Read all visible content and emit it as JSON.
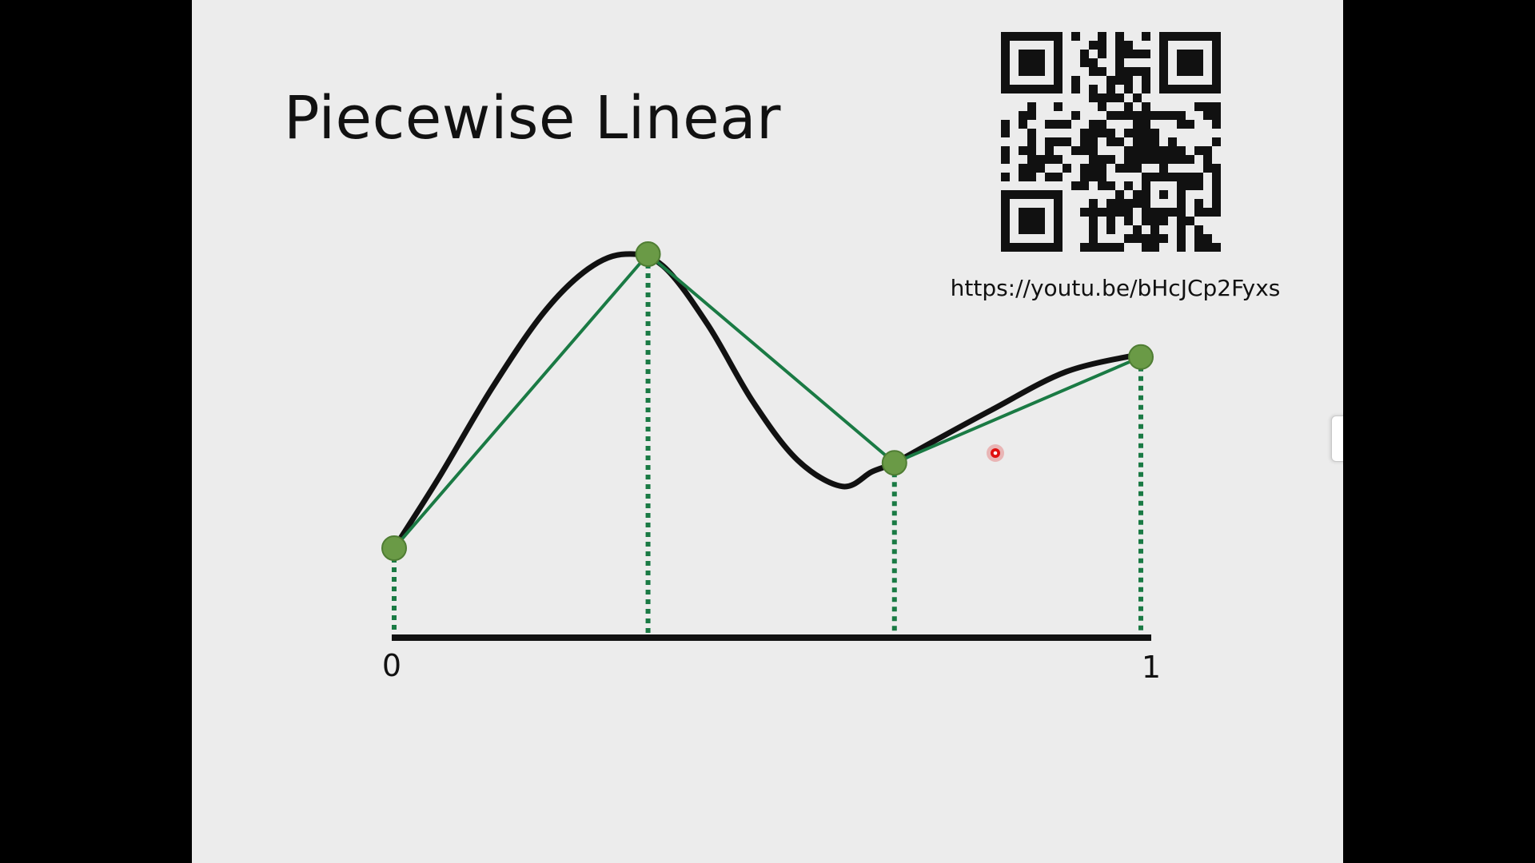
{
  "slide": {
    "title": "Piecewise Linear",
    "qr_link_url": "https://youtu.be/bHcJCp2Fyxs",
    "qr_icon": "qr-code-icon"
  },
  "chart_data": {
    "type": "line",
    "title": "",
    "xlabel": "",
    "ylabel": "",
    "x_tick_labels": [
      "0",
      "1"
    ],
    "xlim": [
      0,
      1
    ],
    "ylim": [
      0,
      1
    ],
    "grid": false,
    "series": [
      {
        "style": "smooth",
        "color": "#111111",
        "x": [
          0.0,
          0.06,
          0.13,
          0.2,
          0.26,
          0.31,
          0.36,
          0.42,
          0.48,
          0.54,
          0.6,
          0.64,
          0.67,
          0.72,
          0.8,
          0.9,
          1.0
        ],
        "y": [
          0.0,
          0.24,
          0.54,
          0.8,
          0.95,
          1.0,
          0.96,
          0.76,
          0.5,
          0.3,
          0.21,
          0.26,
          0.29,
          0.36,
          0.47,
          0.6,
          0.66
        ]
      },
      {
        "style": "piecewise-linear",
        "color": "#1a7a44",
        "x": [
          0.0,
          0.34,
          0.67,
          1.0
        ],
        "y": [
          0.0,
          1.0,
          0.29,
          0.65
        ]
      }
    ],
    "knot_color": "#6a9a46",
    "dotted_guide_color": "#1a7a44"
  },
  "pointer": {
    "color": "#e01010"
  }
}
